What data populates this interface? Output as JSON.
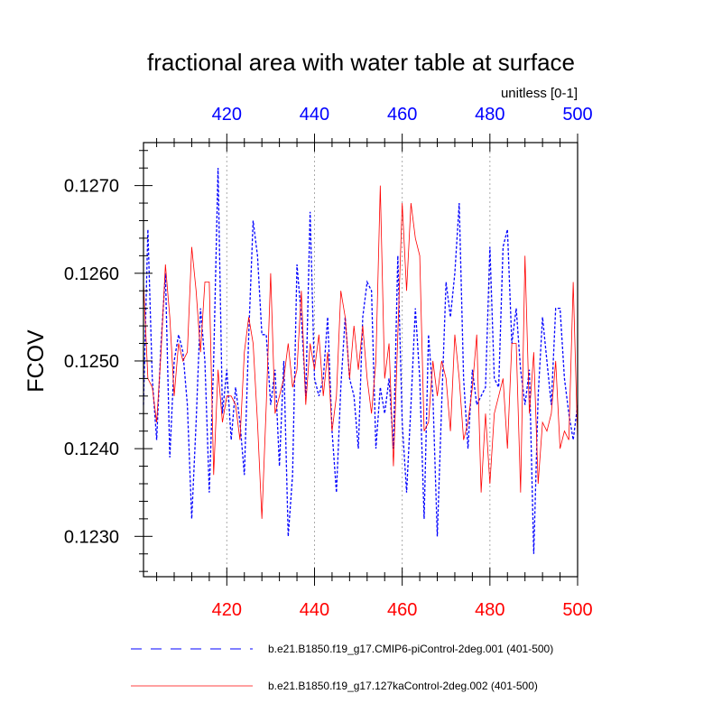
{
  "chart_data": {
    "type": "line",
    "title": "fractional area with water table at surface",
    "units_label": "unitless [0-1]",
    "ylabel": "FCOV",
    "xlabel": "",
    "xlim": [
      401,
      500
    ],
    "ylim": [
      0.12254,
      0.12749
    ],
    "yticks": [
      0.123,
      0.124,
      0.125,
      0.126,
      0.127
    ],
    "ytick_labels": [
      "0.1230",
      "0.1240",
      "0.1250",
      "0.1260",
      "0.1270"
    ],
    "xticks_bottom": [
      420,
      440,
      460,
      480,
      500
    ],
    "xtick_labels_bottom": [
      "420",
      "440",
      "460",
      "480",
      "500"
    ],
    "xticks_top": [
      420,
      440,
      460,
      480,
      500
    ],
    "xtick_labels_top": [
      "420",
      "440",
      "460",
      "480",
      "500"
    ],
    "bottom_axis_color": "#ff0000",
    "top_axis_color": "#0000ff",
    "grid": "vertical dotted at major x ticks",
    "x": [
      401,
      402,
      403,
      404,
      405,
      406,
      407,
      408,
      409,
      410,
      411,
      412,
      413,
      414,
      415,
      416,
      417,
      418,
      419,
      420,
      421,
      422,
      423,
      424,
      425,
      426,
      427,
      428,
      429,
      430,
      431,
      432,
      433,
      434,
      435,
      436,
      437,
      438,
      439,
      440,
      441,
      442,
      443,
      444,
      445,
      446,
      447,
      448,
      449,
      450,
      451,
      452,
      453,
      454,
      455,
      456,
      457,
      458,
      459,
      460,
      461,
      462,
      463,
      464,
      465,
      466,
      467,
      468,
      469,
      470,
      471,
      472,
      473,
      474,
      475,
      476,
      477,
      478,
      479,
      480,
      481,
      482,
      483,
      484,
      485,
      486,
      487,
      488,
      489,
      490,
      491,
      492,
      493,
      494,
      495,
      496,
      497,
      498,
      499,
      500
    ],
    "series": [
      {
        "name": "b.e21.B1850.f19_g17.CMIP6-piControl-2deg.001 (401-500)",
        "color": "#0000ff",
        "dash": "dashed",
        "values": [
          0.1245,
          0.1265,
          0.1248,
          0.1241,
          0.1252,
          0.126,
          0.1239,
          0.125,
          0.1253,
          0.1251,
          0.1245,
          0.1232,
          0.1243,
          0.1256,
          0.125,
          0.1235,
          0.125,
          0.1272,
          0.1244,
          0.1249,
          0.1241,
          0.1247,
          0.1243,
          0.1237,
          0.1253,
          0.1266,
          0.1262,
          0.1253,
          0.1253,
          0.1245,
          0.1249,
          0.1238,
          0.125,
          0.123,
          0.1237,
          0.1261,
          0.1255,
          0.1246,
          0.1267,
          0.1248,
          0.1246,
          0.1248,
          0.1255,
          0.1242,
          0.1235,
          0.1247,
          0.1255,
          0.1248,
          0.1246,
          0.124,
          0.1255,
          0.1259,
          0.1258,
          0.124,
          0.1247,
          0.1244,
          0.1248,
          0.124,
          0.1262,
          0.1243,
          0.1235,
          0.1245,
          0.1256,
          0.1248,
          0.1232,
          0.1253,
          0.1246,
          0.123,
          0.1245,
          0.1259,
          0.1255,
          0.126,
          0.1268,
          0.1248,
          0.124,
          0.1249,
          0.1245,
          0.1246,
          0.1247,
          0.1263,
          0.1248,
          0.1247,
          0.1263,
          0.1265,
          0.1252,
          0.1256,
          0.1249,
          0.1245,
          0.1249,
          0.1228,
          0.1246,
          0.1255,
          0.125,
          0.1245,
          0.1256,
          0.1256,
          0.1248,
          0.1244,
          0.1241,
          0.1245
        ]
      },
      {
        "name": "b.e21.B1850.f19_g17.127kaControl-2deg.002 (401-500)",
        "color": "#ff0000",
        "dash": "solid",
        "values": [
          0.1259,
          0.1248,
          0.1247,
          0.1243,
          0.1251,
          0.1261,
          0.1255,
          0.1246,
          0.1252,
          0.125,
          0.1251,
          0.1263,
          0.1258,
          0.1251,
          0.1259,
          0.1259,
          0.1237,
          0.1249,
          0.1243,
          0.1246,
          0.1246,
          0.1245,
          0.1241,
          0.1251,
          0.1255,
          0.1252,
          0.1243,
          0.1232,
          0.1245,
          0.126,
          0.1244,
          0.1246,
          0.1248,
          0.1252,
          0.1247,
          0.1249,
          0.1258,
          0.1245,
          0.1252,
          0.1249,
          0.1253,
          0.1246,
          0.1251,
          0.1242,
          0.1246,
          0.1258,
          0.1255,
          0.1248,
          0.1254,
          0.1249,
          0.1254,
          0.1248,
          0.1244,
          0.125,
          0.127,
          0.1248,
          0.1252,
          0.1238,
          0.1253,
          0.1268,
          0.1258,
          0.1268,
          0.1264,
          0.1262,
          0.1242,
          0.1243,
          0.125,
          0.1246,
          0.125,
          0.1248,
          0.1242,
          0.1253,
          0.1248,
          0.1241,
          0.1243,
          0.1247,
          0.1253,
          0.1235,
          0.1244,
          0.1236,
          0.1244,
          0.1246,
          0.1248,
          0.124,
          0.1252,
          0.1252,
          0.1235,
          0.1262,
          0.1244,
          0.1251,
          0.1236,
          0.1243,
          0.1242,
          0.1244,
          0.125,
          0.124,
          0.1242,
          0.1241,
          0.1259,
          0.1241
        ]
      }
    ]
  }
}
